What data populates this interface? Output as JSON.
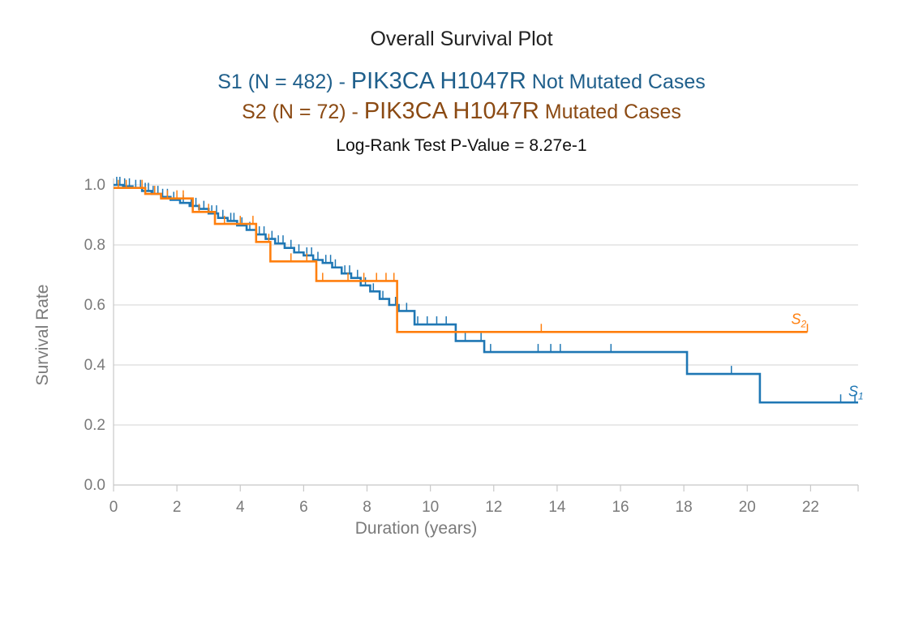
{
  "header": {
    "title": "Overall Survival Plot",
    "s1": {
      "prefix": "S1 (N = 482) - ",
      "gene": "PIK3CA H1047R",
      "suffix": " Not Mutated Cases"
    },
    "s2": {
      "prefix": "S2 (N = 72) - ",
      "gene": "PIK3CA H1047R",
      "suffix": " Mutated Cases"
    },
    "pvalue": "Log-Rank Test P-Value = 8.27e-1"
  },
  "colors": {
    "s1": "#1f77b4",
    "s2": "#ff7f0e",
    "s1_text": "#1f5f8b",
    "s2_text": "#8b4a13",
    "grid": "#dcdcdc",
    "axis": "#c8c8c8"
  },
  "chart_data": {
    "type": "line",
    "xlabel": "Duration (years)",
    "ylabel": "Survival Rate",
    "xlim": [
      0,
      23.5
    ],
    "ylim": [
      0,
      1.0
    ],
    "x_ticks": [
      "0",
      "2",
      "4",
      "6",
      "8",
      "10",
      "12",
      "14",
      "16",
      "18",
      "20",
      "22"
    ],
    "y_ticks": [
      "0.0",
      "0.2",
      "0.4",
      "0.6",
      "0.8",
      "1.0"
    ],
    "grid": true,
    "series": [
      {
        "name": "S1",
        "label": "S",
        "label_sub": "1",
        "color": "#1f77b4",
        "steps": [
          [
            0,
            1.0
          ],
          [
            0.3,
            0.995
          ],
          [
            0.6,
            0.99
          ],
          [
            0.9,
            0.98
          ],
          [
            1.2,
            0.97
          ],
          [
            1.5,
            0.96
          ],
          [
            1.8,
            0.95
          ],
          [
            2.1,
            0.94
          ],
          [
            2.4,
            0.93
          ],
          [
            2.7,
            0.92
          ],
          [
            3.0,
            0.905
          ],
          [
            3.3,
            0.89
          ],
          [
            3.6,
            0.88
          ],
          [
            3.9,
            0.865
          ],
          [
            4.2,
            0.85
          ],
          [
            4.5,
            0.835
          ],
          [
            4.8,
            0.82
          ],
          [
            5.1,
            0.805
          ],
          [
            5.4,
            0.79
          ],
          [
            5.7,
            0.775
          ],
          [
            6.0,
            0.765
          ],
          [
            6.3,
            0.75
          ],
          [
            6.6,
            0.74
          ],
          [
            6.9,
            0.725
          ],
          [
            7.2,
            0.705
          ],
          [
            7.5,
            0.69
          ],
          [
            7.8,
            0.665
          ],
          [
            8.1,
            0.645
          ],
          [
            8.4,
            0.62
          ],
          [
            8.7,
            0.6
          ],
          [
            9.0,
            0.58
          ],
          [
            9.5,
            0.535
          ],
          [
            10.8,
            0.48
          ],
          [
            11.7,
            0.443
          ],
          [
            18.1,
            0.37
          ],
          [
            20.4,
            0.275
          ],
          [
            23.5,
            0.275
          ]
        ],
        "censors": [
          0.1,
          0.2,
          0.35,
          0.5,
          0.7,
          0.85,
          1.0,
          1.1,
          1.25,
          1.4,
          1.55,
          1.7,
          1.9,
          2.2,
          2.45,
          2.6,
          2.85,
          3.1,
          3.25,
          3.45,
          3.7,
          3.8,
          4.05,
          4.3,
          4.6,
          4.75,
          5.0,
          5.2,
          5.35,
          5.6,
          5.85,
          6.1,
          6.25,
          6.45,
          6.7,
          6.85,
          7.0,
          7.3,
          7.45,
          7.7,
          7.95,
          8.2,
          8.5,
          8.9,
          9.25,
          9.6,
          9.9,
          10.2,
          10.5,
          11.1,
          11.6,
          11.9,
          13.4,
          13.8,
          14.1,
          15.7,
          19.5,
          22.95,
          23.4
        ]
      },
      {
        "name": "S2",
        "label": "S",
        "label_sub": "2",
        "color": "#ff7f0e",
        "steps": [
          [
            0,
            0.99
          ],
          [
            1.0,
            0.97
          ],
          [
            1.5,
            0.955
          ],
          [
            2.5,
            0.91
          ],
          [
            3.2,
            0.87
          ],
          [
            4.5,
            0.81
          ],
          [
            4.95,
            0.745
          ],
          [
            6.4,
            0.68
          ],
          [
            8.95,
            0.51
          ],
          [
            21.9,
            0.51
          ]
        ],
        "censors": [
          0.15,
          0.4,
          0.9,
          1.3,
          1.7,
          2.0,
          2.2,
          2.7,
          3.0,
          3.5,
          4.0,
          4.4,
          4.9,
          5.6,
          6.1,
          6.6,
          7.4,
          7.9,
          8.3,
          8.6,
          8.85,
          13.5,
          21.9
        ]
      }
    ]
  }
}
